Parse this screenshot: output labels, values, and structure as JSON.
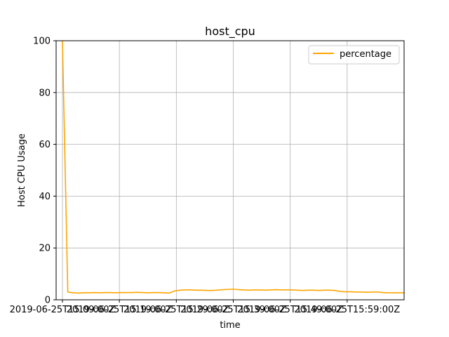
{
  "chart_data": {
    "type": "line",
    "title": "host_cpu",
    "xlabel": "time",
    "ylabel": "Host CPU Usage",
    "ylim": [
      0,
      100
    ],
    "yticks": [
      0,
      20,
      40,
      60,
      80,
      100
    ],
    "grid": true,
    "legend_position": "top-right",
    "xtick_labels": [
      "2019-06-25T15:09:00Z",
      "2019-06-25T15:19:00Z",
      "2019-06-25T15:29:00Z",
      "2019-06-25T15:39:00Z",
      "2019-06-25T15:49:00Z",
      "2019-06-25T15:59:00Z"
    ],
    "series": [
      {
        "name": "percentage",
        "color": "#ffa500",
        "values": [
          100,
          3.0,
          2.7,
          2.6,
          2.7,
          2.7,
          2.8,
          2.7,
          2.8,
          2.8,
          2.7,
          2.8,
          2.8,
          2.8,
          2.9,
          2.8,
          2.7,
          2.8,
          2.8,
          2.7,
          2.6,
          3.4,
          3.7,
          3.8,
          3.8,
          3.7,
          3.7,
          3.6,
          3.6,
          3.7,
          3.9,
          4.0,
          4.1,
          3.9,
          3.8,
          3.7,
          3.8,
          3.8,
          3.7,
          3.8,
          3.9,
          3.8,
          3.8,
          3.8,
          3.7,
          3.6,
          3.7,
          3.7,
          3.6,
          3.7,
          3.7,
          3.6,
          3.2,
          3.1,
          3.1,
          3.0,
          3.0,
          2.9,
          3.0,
          3.0,
          2.8,
          2.7,
          2.7,
          2.7,
          2.7
        ]
      }
    ]
  }
}
